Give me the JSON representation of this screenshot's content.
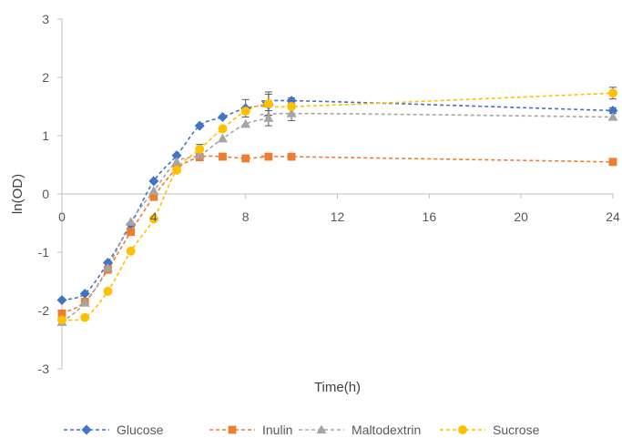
{
  "chart_data": {
    "type": "line",
    "title": "",
    "xlabel": "Time(h)",
    "ylabel": "ln(OD)",
    "xlim": [
      0,
      24
    ],
    "ylim": [
      -3,
      3
    ],
    "x_ticks": [
      0,
      4,
      8,
      12,
      16,
      20,
      24
    ],
    "y_ticks": [
      -3,
      -2,
      -1,
      0,
      1,
      2,
      3
    ],
    "x_tick_labels": [
      "0",
      "4",
      "8",
      "12",
      "16",
      "20",
      "24"
    ],
    "y_tick_labels": [
      "-3",
      "-2",
      "-1",
      "0",
      "1",
      "2",
      "3"
    ],
    "x_axis_crosses_y_at": 0,
    "grid": false,
    "legend_position": "bottom",
    "line_style": "dashed smooth",
    "series": [
      {
        "name": "Glucose",
        "color": "#4472C4",
        "marker": "diamond",
        "x": [
          0,
          1,
          2,
          3,
          4,
          5,
          6,
          7,
          8,
          9,
          10,
          24
        ],
        "y": [
          -1.82,
          -1.71,
          -1.18,
          -0.52,
          0.22,
          0.66,
          1.17,
          1.32,
          1.47,
          1.53,
          1.6,
          1.43
        ],
        "err": [
          0,
          0,
          0,
          0,
          0,
          0,
          0,
          0,
          0.15,
          0.18,
          0.05,
          0.05
        ]
      },
      {
        "name": "Inulin",
        "color": "#ED7D31",
        "marker": "square",
        "x": [
          0,
          1,
          2,
          3,
          4,
          5,
          6,
          7,
          8,
          9,
          10,
          24
        ],
        "y": [
          -2.05,
          -1.85,
          -1.3,
          -0.65,
          -0.05,
          0.43,
          0.63,
          0.64,
          0.61,
          0.64,
          0.64,
          0.55
        ],
        "err": [
          0,
          0,
          0,
          0,
          0,
          0,
          0,
          0,
          0,
          0,
          0,
          0
        ]
      },
      {
        "name": "Maltodextrin",
        "color": "#A5A5A5",
        "marker": "triangle",
        "x": [
          0,
          1,
          2,
          3,
          4,
          5,
          6,
          7,
          8,
          9,
          10,
          24
        ],
        "y": [
          -2.2,
          -1.87,
          -1.27,
          -0.48,
          0.05,
          0.55,
          0.67,
          0.95,
          1.2,
          1.3,
          1.38,
          1.32
        ],
        "err": [
          0,
          0,
          0,
          0,
          0,
          0,
          0,
          0,
          0,
          0.13,
          0.12,
          0
        ]
      },
      {
        "name": "Sucrose",
        "color": "#FFC000",
        "marker": "circle",
        "x": [
          0,
          1,
          2,
          3,
          4,
          5,
          6,
          7,
          8,
          9,
          10,
          24
        ],
        "y": [
          -2.16,
          -2.12,
          -1.67,
          -0.98,
          -0.43,
          0.41,
          0.77,
          1.12,
          1.42,
          1.55,
          1.5,
          1.73
        ],
        "err": [
          0,
          0,
          0,
          0,
          0,
          0,
          0.08,
          0,
          0,
          0.2,
          0,
          0.1
        ]
      }
    ]
  }
}
